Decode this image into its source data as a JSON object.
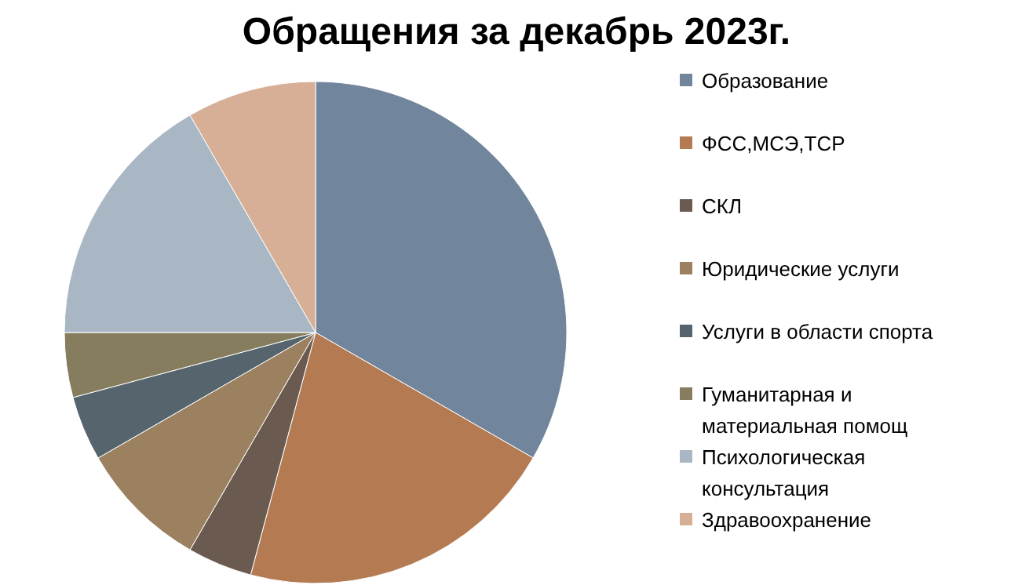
{
  "chart_data": {
    "type": "pie",
    "title": "Обращения за декабрь 2023г.",
    "categories": [
      "Образование",
      "ФСС,МСЭ,ТСР",
      "СКЛ",
      "Юридические услуги",
      "Услуги в области спорта",
      "Гуманитарная и материальная помощ",
      "Психологическая консультация",
      "Здравоохранение"
    ],
    "values": [
      33.33,
      20.83,
      4.17,
      8.33,
      4.17,
      4.17,
      16.67,
      8.33
    ],
    "colors": [
      "#71869c",
      "#b47a52",
      "#6b5a50",
      "#9b8160",
      "#56656d",
      "#857d5e",
      "#a9b7c5",
      "#d6af96"
    ],
    "legend": "right"
  }
}
